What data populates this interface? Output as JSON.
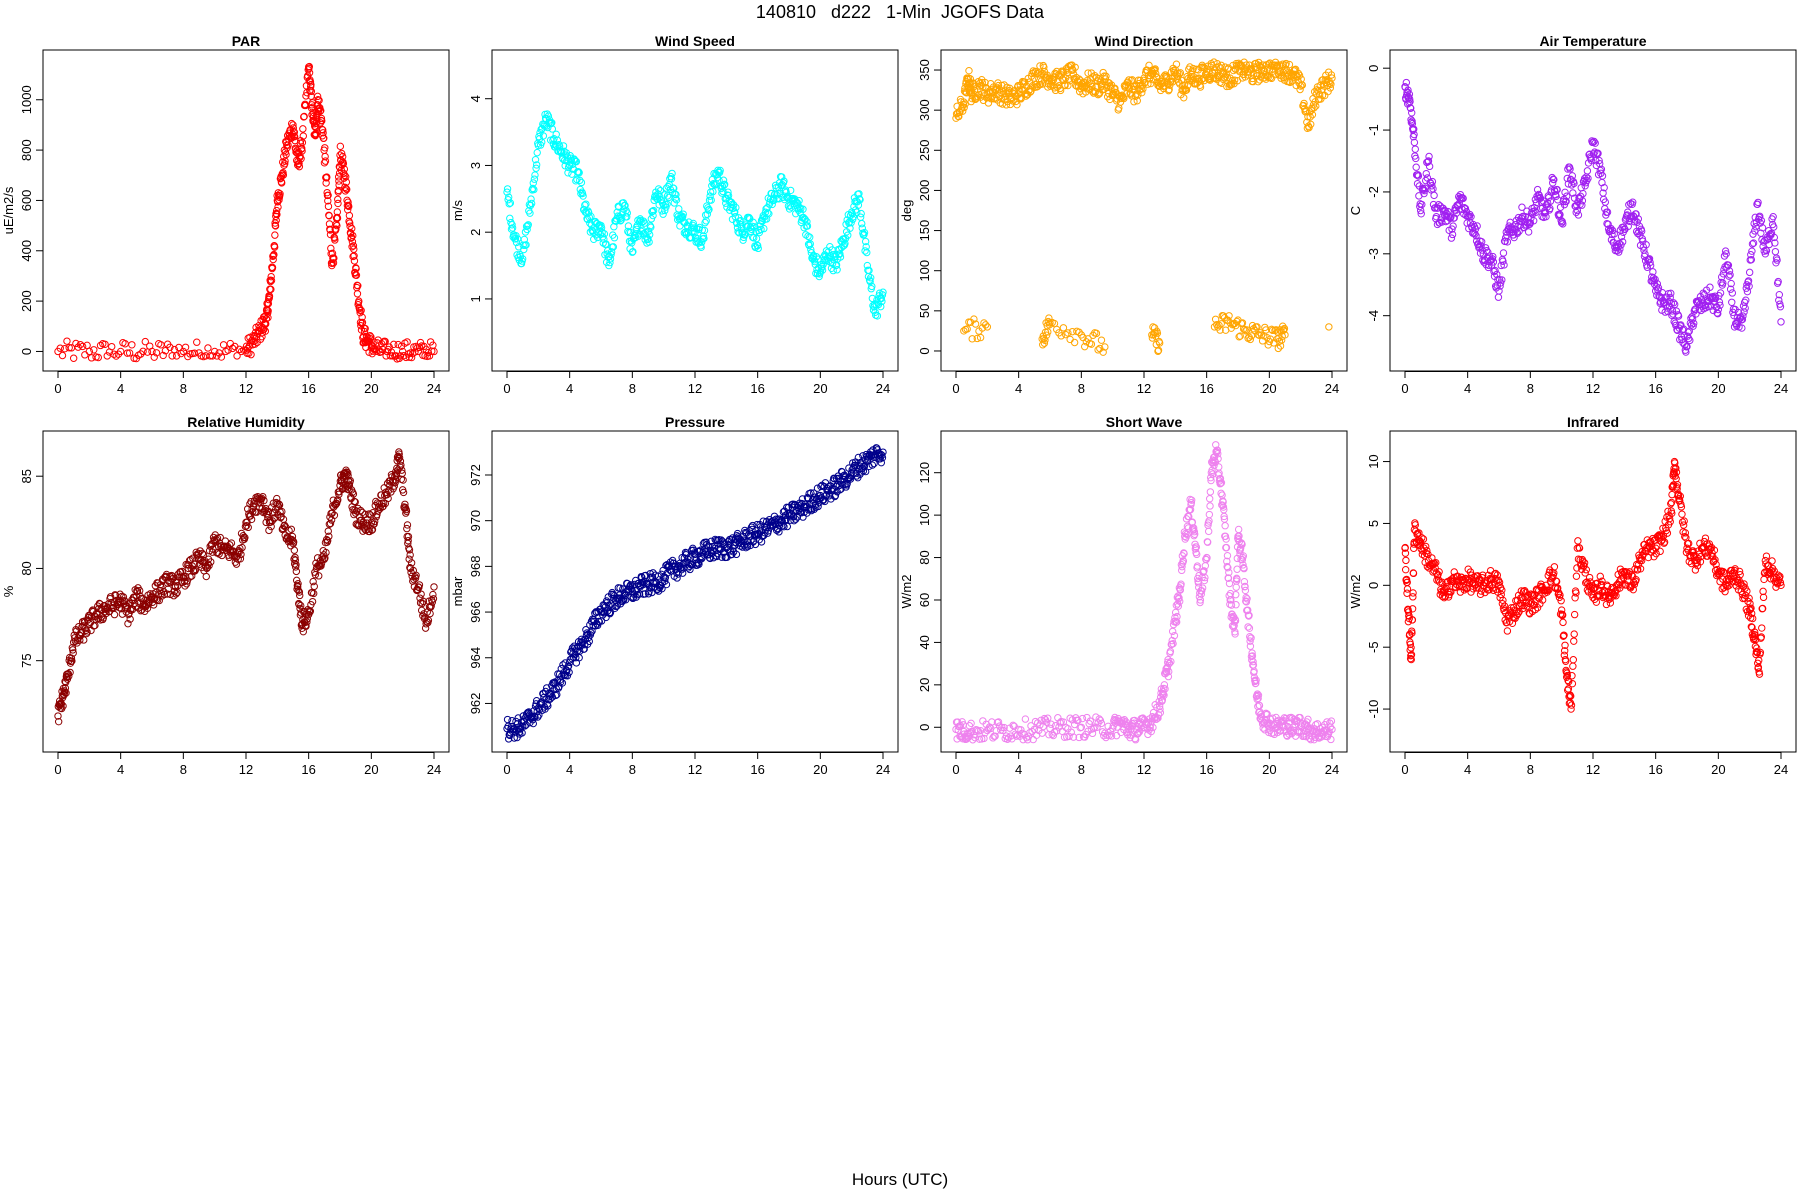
{
  "title": "140810   d222   1-Min  JGOFS Data",
  "xlabel": "Hours (UTC)",
  "chart_data": [
    {
      "type": "scatter",
      "title": "PAR",
      "ylabel": "uE/m2/s",
      "color": "#ff0000",
      "xlim": [
        0,
        24
      ],
      "ylim": [
        -30,
        1150
      ],
      "xticks": [
        0,
        4,
        8,
        12,
        16,
        20,
        24
      ],
      "yticks": [
        0,
        200,
        400,
        600,
        800,
        1000
      ],
      "x": [
        0,
        2,
        4,
        6,
        8,
        10,
        12,
        12.5,
        13,
        13.3,
        13.5,
        13.8,
        14,
        14.3,
        14.6,
        15,
        15.3,
        15.6,
        16,
        16.2,
        16.4,
        16.6,
        16.9,
        17.2,
        17.5,
        17.8,
        18,
        18.3,
        18.6,
        18.9,
        19.2,
        19.5,
        19.8,
        20.2,
        21,
        22,
        23,
        24
      ],
      "y": [
        0,
        0,
        0,
        0,
        0,
        0,
        5,
        40,
        90,
        130,
        220,
        420,
        600,
        700,
        820,
        900,
        740,
        830,
        1130,
        980,
        860,
        1000,
        880,
        620,
        350,
        500,
        780,
        700,
        540,
        380,
        200,
        60,
        40,
        10,
        0,
        0,
        0,
        0
      ]
    },
    {
      "type": "scatter",
      "title": "Wind Speed",
      "ylabel": "m/s",
      "color": "#00ffff",
      "xlim": [
        0,
        24
      ],
      "ylim": [
        0.1,
        4.55
      ],
      "xticks": [
        0,
        4,
        8,
        12,
        16,
        20,
        24
      ],
      "yticks": [
        1,
        2,
        3,
        4
      ],
      "x": [
        0,
        0.5,
        1,
        1.5,
        2,
        2.5,
        3,
        3.5,
        4,
        4.5,
        5,
        5.5,
        6,
        6.5,
        7,
        7.5,
        8,
        8.5,
        9,
        9.5,
        10,
        10.5,
        11,
        11.5,
        12,
        12.5,
        13,
        13.5,
        14,
        14.5,
        15,
        15.5,
        16,
        16.5,
        17,
        17.5,
        18,
        18.5,
        19,
        19.5,
        20,
        20.5,
        21,
        21.5,
        22,
        22.5,
        23,
        23.5,
        24
      ],
      "y": [
        2.6,
        1.9,
        1.6,
        2.4,
        3.3,
        3.7,
        3.4,
        3.2,
        3.0,
        2.9,
        2.3,
        2.0,
        2.1,
        1.5,
        2.2,
        2.4,
        1.7,
        2.2,
        1.9,
        2.6,
        2.4,
        2.8,
        2.2,
        2.1,
        2.0,
        1.9,
        2.6,
        2.9,
        2.5,
        2.3,
        2.0,
        2.2,
        1.8,
        2.3,
        2.5,
        2.7,
        2.5,
        2.4,
        2.2,
        1.6,
        1.4,
        1.7,
        1.5,
        1.9,
        2.3,
        2.5,
        1.5,
        0.8,
        1.1
      ]
    },
    {
      "type": "scatter",
      "title": "Wind Direction",
      "ylabel": "deg",
      "color": "#ffa500",
      "xlim": [
        0,
        24
      ],
      "ylim": [
        -10,
        360
      ],
      "xticks": [
        0,
        4,
        8,
        12,
        16,
        20,
        24
      ],
      "yticks": [
        0,
        50,
        100,
        150,
        200,
        250,
        300,
        350
      ],
      "x": [
        0,
        0.5,
        0.8,
        1,
        1.5,
        2,
        2.5,
        3,
        3.5,
        4,
        4.5,
        5,
        5.5,
        6,
        6.5,
        7,
        7.5,
        8,
        8.5,
        9,
        9.5,
        10,
        10.5,
        11,
        11.5,
        12,
        12.5,
        13,
        13.5,
        14,
        14.5,
        15,
        15.5,
        16,
        16.5,
        17,
        17.5,
        18,
        18.5,
        19,
        19.5,
        20,
        20.5,
        21,
        21.5,
        22,
        22.5,
        23,
        23.5,
        24,
        0.5,
        2,
        5.5,
        6,
        8,
        9.5,
        12.5,
        13,
        16.5,
        17.5,
        18.5,
        19.5,
        20.5,
        21,
        23.8
      ],
      "y": [
        290,
        310,
        340,
        320,
        330,
        320,
        325,
        320,
        315,
        320,
        330,
        340,
        345,
        340,
        335,
        340,
        345,
        330,
        335,
        330,
        335,
        320,
        310,
        330,
        320,
        340,
        345,
        330,
        335,
        350,
        325,
        345,
        340,
        348,
        350,
        345,
        340,
        350,
        350,
        345,
        350,
        350,
        355,
        350,
        345,
        330,
        280,
        320,
        330,
        340,
        25,
        30,
        15,
        35,
        20,
        5,
        20,
        10,
        30,
        35,
        25,
        20,
        15,
        20,
        30
      ]
    },
    {
      "type": "scatter",
      "title": "Air Temperature",
      "ylabel": "C",
      "color": "#a020f0",
      "xlim": [
        0,
        24
      ],
      "ylim": [
        -4.7,
        0.1
      ],
      "xticks": [
        0,
        4,
        8,
        12,
        16,
        20,
        24
      ],
      "yticks": [
        0,
        -1,
        -2,
        -3,
        -4
      ],
      "x": [
        0,
        0.3,
        0.6,
        1,
        1.5,
        2,
        2.5,
        3,
        3.5,
        4,
        4.5,
        5,
        5.5,
        6,
        6.5,
        7,
        7.5,
        8,
        8.5,
        9,
        9.5,
        10,
        10.5,
        11,
        11.5,
        12,
        12.5,
        13,
        13.5,
        14,
        14.5,
        15,
        15.5,
        16,
        16.5,
        17,
        17.5,
        18,
        18.5,
        19,
        19.5,
        20,
        20.5,
        21,
        21.5,
        22,
        22.5,
        23,
        23.5,
        24
      ],
      "y": [
        -0.3,
        -0.5,
        -1.2,
        -2.3,
        -1.5,
        -2.4,
        -2.3,
        -2.6,
        -2.1,
        -2.4,
        -2.6,
        -3.0,
        -3.1,
        -3.6,
        -2.7,
        -2.6,
        -2.4,
        -2.5,
        -2.1,
        -2.4,
        -1.8,
        -2.5,
        -1.6,
        -2.3,
        -1.9,
        -1.2,
        -1.7,
        -2.6,
        -2.9,
        -2.6,
        -2.2,
        -2.7,
        -3.1,
        -3.6,
        -3.8,
        -3.8,
        -4.2,
        -4.5,
        -3.9,
        -3.8,
        -3.7,
        -3.9,
        -3.0,
        -4.0,
        -4.2,
        -3.3,
        -2.2,
        -3.0,
        -2.4,
        -4.1
      ]
    },
    {
      "type": "scatter",
      "title": "Relative Humidity",
      "ylabel": "%",
      "color": "#8b0000",
      "xlim": [
        0,
        24
      ],
      "ylim": [
        70.7,
        86.8
      ],
      "xticks": [
        0,
        4,
        8,
        12,
        16,
        20,
        24
      ],
      "yticks": [
        75,
        80,
        85
      ],
      "x": [
        0,
        0.3,
        0.6,
        1,
        1.5,
        2,
        2.5,
        3,
        3.5,
        4,
        4.5,
        5,
        5.5,
        6,
        6.5,
        7,
        7.5,
        8,
        8.5,
        9,
        9.5,
        10,
        10.5,
        11,
        11.5,
        12,
        12.5,
        13,
        13.5,
        14,
        14.5,
        15,
        15.3,
        15.6,
        16,
        16.5,
        17,
        17.5,
        18,
        18.3,
        18.6,
        19,
        19.5,
        20,
        20.5,
        21,
        21.5,
        21.8,
        22.2,
        22.5,
        23,
        23.5,
        24
      ],
      "y": [
        72,
        73,
        74,
        76,
        76.5,
        77,
        77.5,
        77.8,
        78,
        78.2,
        77.5,
        78.5,
        78,
        78.5,
        78.8,
        79.2,
        79,
        79.5,
        80,
        80.5,
        80,
        81.5,
        81,
        81,
        80.5,
        82.5,
        83.5,
        83.8,
        82.5,
        83.5,
        81.8,
        81.5,
        79,
        77,
        77.5,
        80,
        80.5,
        83,
        84.5,
        85,
        84.5,
        83,
        82.5,
        82.5,
        83.5,
        84,
        85,
        86,
        83,
        80,
        79,
        77,
        79
      ]
    },
    {
      "type": "scatter",
      "title": "Pressure",
      "ylabel": "mbar",
      "color": "#00008b",
      "xlim": [
        0,
        24
      ],
      "ylim": [
        960.4,
        973.4
      ],
      "xticks": [
        0,
        4,
        8,
        12,
        16,
        20,
        24
      ],
      "yticks": [
        962,
        964,
        966,
        968,
        970,
        972
      ],
      "x": [
        0,
        0.5,
        1,
        1.5,
        2,
        2.5,
        3,
        3.5,
        4,
        4.5,
        5,
        5.5,
        6,
        6.5,
        7,
        7.5,
        8,
        8.5,
        9,
        9.5,
        10,
        10.5,
        11,
        11.5,
        12,
        12.5,
        13,
        13.5,
        14,
        14.5,
        15,
        15.5,
        16,
        16.5,
        17,
        17.5,
        18,
        18.5,
        19,
        19.5,
        20,
        20.5,
        21,
        21.5,
        22,
        22.5,
        23,
        23.5,
        24
      ],
      "y": [
        960.9,
        960.9,
        961.0,
        961.4,
        961.8,
        962.2,
        962.6,
        963.2,
        963.8,
        964.3,
        964.8,
        965.4,
        966.0,
        966.3,
        966.6,
        966.8,
        966.9,
        967.1,
        967.2,
        967.3,
        967.5,
        967.8,
        968.0,
        968.2,
        968.4,
        968.6,
        968.7,
        968.8,
        968.8,
        968.9,
        969.1,
        969.3,
        969.4,
        969.6,
        969.8,
        970.0,
        970.2,
        970.4,
        970.6,
        970.9,
        971.1,
        971.3,
        971.5,
        971.8,
        972.1,
        972.4,
        972.6,
        972.9,
        973.0
      ]
    },
    {
      "type": "scatter",
      "title": "Short Wave",
      "ylabel": "W/m2",
      "color": "#ee82ee",
      "xlim": [
        0,
        24
      ],
      "ylim": [
        -6,
        134
      ],
      "xticks": [
        0,
        4,
        8,
        12,
        16,
        20,
        24
      ],
      "yticks": [
        0,
        20,
        40,
        60,
        80,
        100,
        120
      ],
      "x": [
        0,
        0.5,
        1,
        2,
        3,
        4,
        5,
        6,
        7,
        8,
        9,
        10,
        10.5,
        11,
        11.5,
        12,
        12.5,
        13,
        13.3,
        13.6,
        14,
        14.3,
        14.6,
        15,
        15.3,
        15.6,
        16,
        16.3,
        16.6,
        16.9,
        17.2,
        17.5,
        17.8,
        18,
        18.3,
        18.6,
        18.9,
        19.2,
        19.5,
        20,
        20.5,
        21,
        21.5,
        22,
        22.5,
        23,
        23.5,
        24
      ],
      "y": [
        -1,
        -2,
        -2,
        -1.5,
        -1.5,
        -1,
        -1,
        -0.5,
        0,
        0,
        0,
        -0.5,
        2,
        -1,
        -1,
        0,
        3,
        10,
        20,
        30,
        50,
        65,
        90,
        105,
        85,
        60,
        80,
        120,
        130,
        115,
        90,
        60,
        45,
        90,
        80,
        55,
        35,
        15,
        5,
        2,
        0,
        1,
        0,
        1,
        -1,
        -2,
        -2,
        -1
      ]
    },
    {
      "type": "scatter",
      "title": "Infrared",
      "ylabel": "W/m2",
      "color": "#ff0000",
      "xlim": [
        0,
        24
      ],
      "ylim": [
        -12.5,
        11.5
      ],
      "xticks": [
        0,
        4,
        8,
        12,
        16,
        20,
        24
      ],
      "yticks": [
        -10,
        -5,
        0,
        5,
        10
      ],
      "x": [
        0,
        0.2,
        0.4,
        0.6,
        1,
        1.5,
        2,
        2.5,
        3,
        3.5,
        4,
        4.5,
        5,
        5.5,
        6,
        6.5,
        7,
        7.5,
        8,
        8.5,
        9,
        9.5,
        10,
        10.3,
        10.6,
        11,
        11.5,
        12,
        12.5,
        13,
        13.5,
        14,
        14.5,
        15,
        15.5,
        16,
        16.5,
        17,
        17.2,
        17.5,
        18,
        18.5,
        19,
        19.5,
        20,
        20.5,
        21,
        21.5,
        22,
        22.3,
        22.6,
        23,
        23.5,
        24
      ],
      "y": [
        3,
        -2,
        -6,
        4.5,
        3.5,
        2,
        1,
        -1,
        0.5,
        0,
        0.5,
        0,
        0,
        0.5,
        0,
        -3,
        -2,
        -1,
        -1.5,
        -1,
        0,
        1,
        -2,
        -7,
        -10,
        3,
        1,
        -1,
        0,
        -1,
        0,
        1,
        0,
        2,
        3,
        3,
        4,
        6,
        10,
        7,
        3,
        2,
        3,
        3,
        1,
        0,
        1,
        0,
        -2,
        -4,
        -7,
        2,
        1,
        0
      ]
    }
  ]
}
